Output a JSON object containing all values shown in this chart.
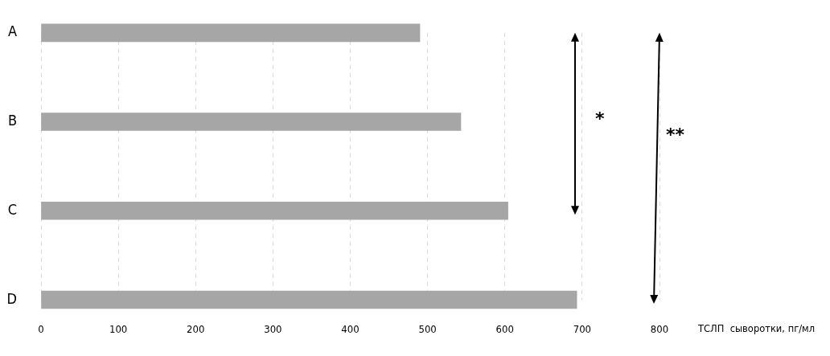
{
  "chart_data": {
    "type": "bar",
    "orientation": "horizontal",
    "xlabel": "ТСЛП  сыворотки, пг/мл",
    "categories": [
      "A",
      "B",
      "C",
      "D"
    ],
    "values": [
      490,
      543,
      604,
      693
    ],
    "color": "#a6a6a6",
    "xlim": [
      0,
      800
    ],
    "xticks": [
      0,
      100,
      200,
      300,
      400,
      500,
      600,
      700,
      800
    ],
    "grid": "x",
    "legend": false,
    "annotations": [
      "*",
      "**"
    ]
  }
}
